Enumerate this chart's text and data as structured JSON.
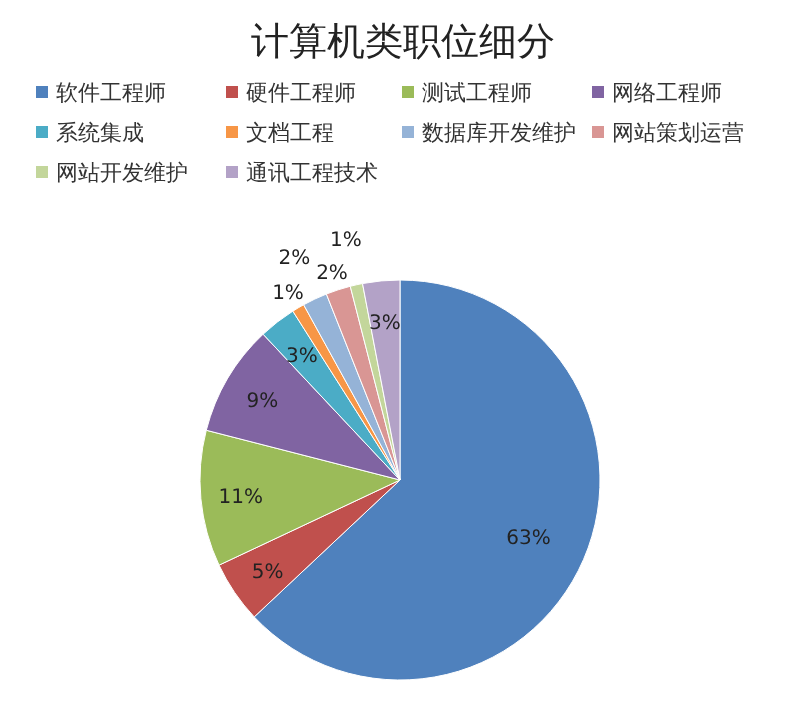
{
  "chart_data": {
    "type": "pie",
    "title": "计算机类职位细分",
    "categories": [
      "软件工程师",
      "硬件工程师",
      "测试工程师",
      "网络工程师",
      "系统集成",
      "文档工程",
      "数据库开发维护",
      "网站策划运营",
      "网站开发维护",
      "通讯工程技术"
    ],
    "values": [
      63,
      5,
      11,
      9,
      3,
      1,
      2,
      2,
      1,
      3
    ],
    "colors": [
      "#4f81bd",
      "#c0504d",
      "#9bbb59",
      "#8064a2",
      "#4bacc6",
      "#f79646",
      "#95b3d7",
      "#d99694",
      "#c3d69b",
      "#b3a2c7"
    ],
    "value_labels": [
      "63%",
      "5%",
      "11%",
      "9%",
      "3%",
      "1%",
      "2%",
      "2%",
      "1%",
      "3%"
    ],
    "legend": "top"
  }
}
